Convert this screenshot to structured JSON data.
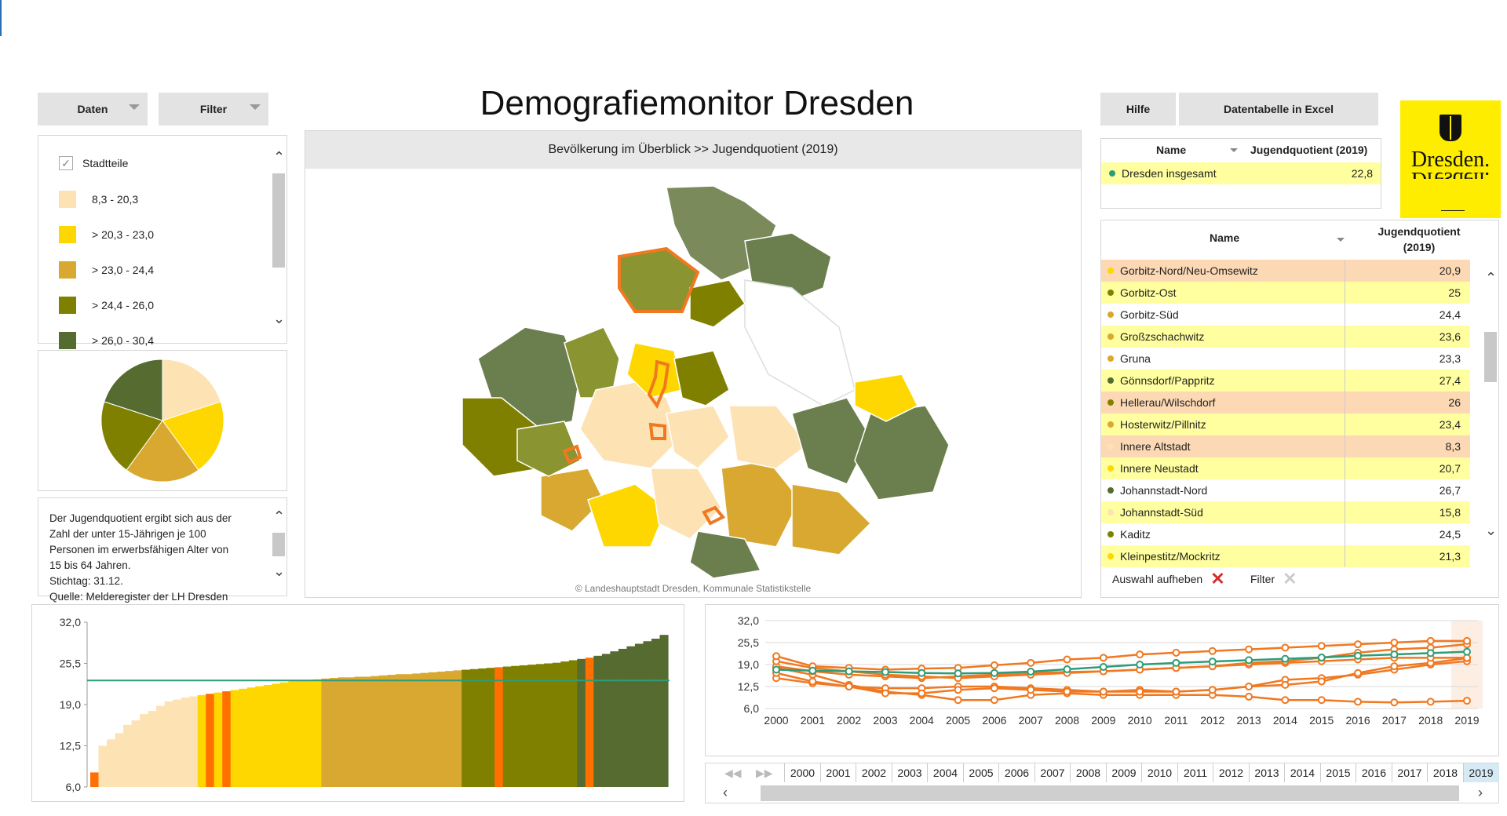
{
  "header": {
    "title": "Demografiemonitor Dresden"
  },
  "buttons": {
    "daten": "Daten",
    "filter": "Filter",
    "hilfe": "Hilfe",
    "excel": "Datentabelle in Excel"
  },
  "logo": {
    "text": "Dresden.",
    "mirror": "Dresden."
  },
  "legend": {
    "checkbox_label": "Stadtteile",
    "items": [
      {
        "label": "8,3 - 20,3",
        "color": "#fde3b4"
      },
      {
        "label": "> 20,3 - 23,0",
        "color": "#ffd700"
      },
      {
        "label": "> 23,0 - 24,4",
        "color": "#d9a830"
      },
      {
        "label": "> 24,4 - 26,0",
        "color": "#808000"
      },
      {
        "label": "> 26,0 - 30,4",
        "color": "#556b2f"
      }
    ]
  },
  "pie": {
    "slices": [
      {
        "value": 20,
        "color": "#fde3b4"
      },
      {
        "value": 20,
        "color": "#ffd700"
      },
      {
        "value": 20,
        "color": "#d9a830"
      },
      {
        "value": 20,
        "color": "#808000"
      },
      {
        "value": 20,
        "color": "#556b2f"
      }
    ]
  },
  "description": {
    "lines": [
      "Der Jugendquotient ergibt sich aus der",
      "Zahl der unter 15-Jährigen je 100",
      "Personen im erwerbsfähigen Alter von",
      "15 bis 64 Jahren.",
      "Stichtag: 31.12.",
      "Quelle: Melderegister der LH Dresden"
    ]
  },
  "map": {
    "title": "Bevölkerung im Überblick >>  Jugendquotient (2019)",
    "copyright": "© Landeshauptstadt Dresden, Kommunale Statistikstelle"
  },
  "summary_table": {
    "col_name": "Name",
    "col_value": "Jugendquotient (2019)",
    "rows": [
      {
        "name": "Dresden insgesamt",
        "value": "22,8",
        "color": "#2e9c78"
      }
    ]
  },
  "district_table": {
    "col_name": "Name",
    "col_value_1": "Jugendquotient",
    "col_value_2": "(2019)",
    "rows": [
      {
        "name": "Gorbitz-Nord/Neu-Omsewitz",
        "value": "20,9",
        "color": "#ffd700",
        "bg": "#fcd8b4"
      },
      {
        "name": "Gorbitz-Ost",
        "value": "25",
        "color": "#808000",
        "bg": "#ffffa0"
      },
      {
        "name": "Gorbitz-Süd",
        "value": "24,4",
        "color": "#d9a830",
        "bg": "#ffffff"
      },
      {
        "name": "Großzschachwitz",
        "value": "23,6",
        "color": "#d9a830",
        "bg": "#ffffa0"
      },
      {
        "name": "Gruna",
        "value": "23,3",
        "color": "#d9a830",
        "bg": "#ffffff"
      },
      {
        "name": "Gönnsdorf/Pappritz",
        "value": "27,4",
        "color": "#556b2f",
        "bg": "#ffffa0"
      },
      {
        "name": "Hellerau/Wilschdorf",
        "value": "26",
        "color": "#808000",
        "bg": "#fcd8b4"
      },
      {
        "name": "Hosterwitz/Pillnitz",
        "value": "23,4",
        "color": "#d9a830",
        "bg": "#ffffa0"
      },
      {
        "name": "Innere Altstadt",
        "value": "8,3",
        "color": "#fde3b4",
        "bg": "#fcd8b4"
      },
      {
        "name": "Innere Neustadt",
        "value": "20,7",
        "color": "#ffd700",
        "bg": "#ffffa0"
      },
      {
        "name": "Johannstadt-Nord",
        "value": "26,7",
        "color": "#556b2f",
        "bg": "#ffffff"
      },
      {
        "name": "Johannstadt-Süd",
        "value": "15,8",
        "color": "#fde3b4",
        "bg": "#ffffa0"
      },
      {
        "name": "Kaditz",
        "value": "24,5",
        "color": "#808000",
        "bg": "#ffffff"
      },
      {
        "name": "Kleinpestitz/Mockritz",
        "value": "21,3",
        "color": "#ffd700",
        "bg": "#ffffa0"
      }
    ],
    "actions": {
      "clear": "Auswahl aufheben",
      "filter": "Filter"
    }
  },
  "chart_data": [
    {
      "type": "bar",
      "yticks": [
        "32,0",
        "25,5",
        "19,0",
        "12,5",
        "6,0"
      ],
      "ylim": [
        6.0,
        32.0
      ],
      "reference_value": 22.8,
      "values": [
        8.3,
        12.5,
        13.5,
        14.5,
        15.8,
        16.5,
        17.5,
        18.0,
        18.8,
        19.5,
        19.8,
        20.1,
        20.3,
        20.5,
        20.7,
        20.9,
        21.1,
        21.3,
        21.5,
        21.7,
        21.9,
        22.1,
        22.3,
        22.5,
        22.7,
        22.8,
        22.9,
        23.0,
        23.1,
        23.2,
        23.3,
        23.3,
        23.4,
        23.4,
        23.5,
        23.6,
        23.7,
        23.8,
        23.8,
        23.9,
        24.0,
        24.1,
        24.2,
        24.3,
        24.4,
        24.5,
        24.6,
        24.7,
        24.8,
        24.9,
        25.0,
        25.1,
        25.2,
        25.3,
        25.4,
        25.5,
        25.6,
        25.8,
        26.0,
        26.2,
        26.4,
        26.7,
        27.0,
        27.4,
        27.8,
        28.2,
        28.6,
        29.0,
        29.4,
        30.0
      ],
      "highlight_indices": [
        0,
        14,
        16,
        49,
        60
      ]
    },
    {
      "type": "line",
      "x": [
        "2000",
        "2001",
        "2002",
        "2003",
        "2004",
        "2005",
        "2006",
        "2007",
        "2008",
        "2009",
        "2010",
        "2011",
        "2012",
        "2013",
        "2014",
        "2015",
        "2016",
        "2017",
        "2018",
        "2019"
      ],
      "yticks": [
        "32,0",
        "25,5",
        "19,0",
        "12,5",
        "6,0"
      ],
      "ylim": [
        6.0,
        32.0
      ],
      "series": [
        {
          "color": "#2e9c78",
          "values": [
            17.5,
            17.2,
            17.0,
            16.8,
            16.5,
            16.4,
            16.5,
            16.9,
            17.6,
            18.3,
            19.0,
            19.5,
            19.9,
            20.3,
            20.7,
            21.1,
            21.6,
            22.0,
            22.4,
            22.8
          ]
        },
        {
          "color": "#f07820",
          "values": [
            21.5,
            18.5,
            18.0,
            17.5,
            17.8,
            18.0,
            18.8,
            19.5,
            20.5,
            21.0,
            22.0,
            22.5,
            23.0,
            23.5,
            24.0,
            24.5,
            25.0,
            25.5,
            26.0,
            26.0
          ]
        },
        {
          "color": "#f07820",
          "values": [
            20.0,
            18.0,
            17.0,
            16.0,
            15.5,
            15.0,
            15.5,
            16.0,
            16.5,
            17.0,
            17.5,
            18.0,
            18.5,
            19.5,
            20.0,
            21.0,
            22.5,
            23.5,
            24.0,
            25.0
          ]
        },
        {
          "color": "#f07820",
          "values": [
            18.5,
            17.0,
            16.0,
            15.5,
            15.0,
            15.5,
            16.0,
            16.5,
            16.8,
            17.0,
            17.5,
            18.0,
            18.5,
            19.0,
            19.5,
            20.0,
            20.5,
            21.0,
            21.0,
            21.0
          ]
        },
        {
          "color": "#f07820",
          "values": [
            16.5,
            14.0,
            12.5,
            10.5,
            10.5,
            11.5,
            12.0,
            11.5,
            11.0,
            11.0,
            11.0,
            11.0,
            11.5,
            12.5,
            13.0,
            14.0,
            16.5,
            18.5,
            19.5,
            20.9
          ]
        },
        {
          "color": "#f07820",
          "values": [
            15.0,
            13.5,
            12.5,
            12.0,
            12.0,
            12.5,
            12.5,
            12.0,
            11.5,
            11.0,
            11.5,
            11.0,
            11.5,
            12.5,
            14.5,
            15.0,
            16.0,
            17.5,
            19.0,
            20.0
          ]
        },
        {
          "color": "#f07820",
          "values": [
            18.0,
            16.0,
            13.0,
            11.0,
            10.0,
            8.5,
            8.5,
            10.0,
            10.5,
            10.0,
            10.0,
            10.0,
            10.0,
            9.5,
            8.5,
            8.5,
            8.0,
            7.8,
            8.0,
            8.3
          ]
        }
      ]
    }
  ],
  "years": {
    "labels": [
      "2000",
      "2001",
      "2002",
      "2003",
      "2004",
      "2005",
      "2006",
      "2007",
      "2008",
      "2009",
      "2010",
      "2011",
      "2012",
      "2013",
      "2014",
      "2015",
      "2016",
      "2017",
      "2018",
      "2019"
    ],
    "selected": "2019"
  }
}
